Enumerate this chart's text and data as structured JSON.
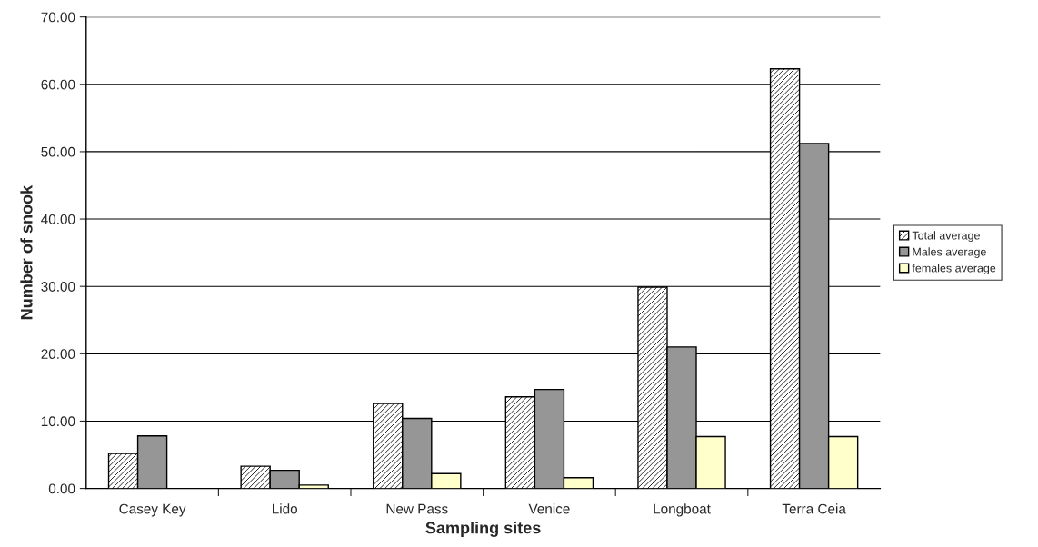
{
  "chart_data": {
    "type": "bar",
    "xlabel": "Sampling sites",
    "ylabel": "Number of snook",
    "categories": [
      "Casey Key",
      "Lido",
      "New Pass",
      "Venice",
      "Longboat",
      "Terra Ceia"
    ],
    "series": [
      {
        "name": "Total average",
        "color": "#000000",
        "values": [
          5.2,
          3.3,
          12.6,
          13.6,
          29.9,
          62.3
        ]
      },
      {
        "name": "Males average",
        "color": "#969696",
        "values": [
          7.8,
          2.7,
          10.4,
          14.7,
          21.0,
          51.2
        ]
      },
      {
        "name": "females average",
        "color": "#ffffcc",
        "values": [
          null,
          0.5,
          2.2,
          1.6,
          7.7,
          7.7
        ]
      }
    ],
    "ylim": [
      0,
      70
    ],
    "yticks": [
      {
        "value": 0,
        "label": "0.00"
      },
      {
        "value": 10,
        "label": "10.00"
      },
      {
        "value": 20,
        "label": "20.00"
      },
      {
        "value": 30,
        "label": "30.00"
      },
      {
        "value": 40,
        "label": "40.00"
      },
      {
        "value": 50,
        "label": "50.00"
      },
      {
        "value": 60,
        "label": "60.00"
      },
      {
        "value": 70,
        "label": "70.00"
      }
    ],
    "grid": "y",
    "legend": "right"
  }
}
